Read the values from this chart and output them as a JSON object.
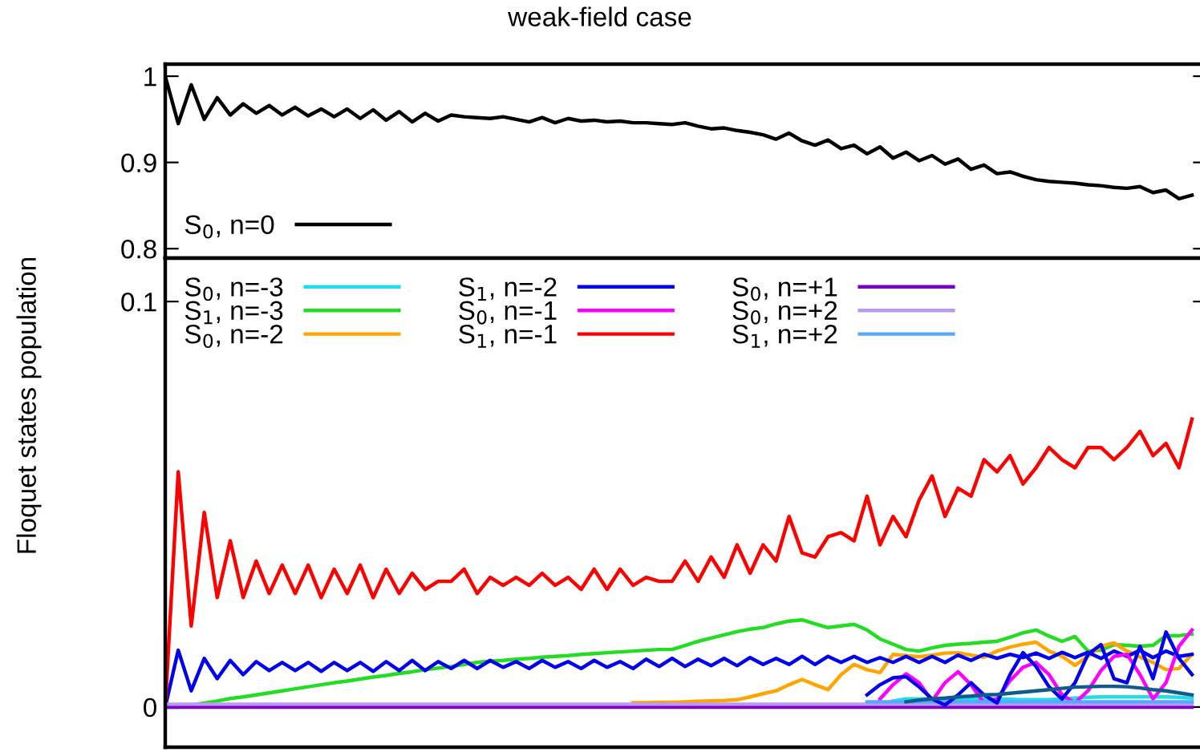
{
  "chart_data": [
    {
      "type": "line",
      "title": "weak-field case",
      "ylabel": "Floquet states population",
      "tick_labels": "y",
      "legend": "bottom left",
      "categories": [
        null,
        null,
        null,
        null,
        null,
        null,
        null,
        null,
        null,
        null,
        null,
        null,
        null,
        null,
        null,
        null,
        null,
        null,
        null,
        null,
        null,
        null,
        null,
        null,
        null,
        null,
        null,
        null,
        null,
        null,
        null,
        null,
        null,
        null,
        null,
        null,
        null,
        null,
        null,
        null,
        null,
        null,
        null,
        null,
        null,
        null,
        null,
        null,
        null,
        null,
        null,
        null,
        null,
        null,
        null,
        null,
        null,
        null,
        null,
        null,
        null,
        null,
        null,
        null,
        null,
        null,
        null,
        null,
        null,
        null,
        null,
        null,
        null,
        null,
        null,
        null,
        null,
        null,
        null,
        null
      ],
      "ylim": [
        0.789,
        1.014
      ],
      "yticks": [
        0.8,
        0.9,
        1
      ],
      "series": [
        {
          "name": "S$_{0}$, n=0",
          "color": "#000000",
          "values": [
            1.0,
            0.945,
            0.99,
            0.95,
            0.975,
            0.955,
            0.968,
            0.957,
            0.966,
            0.955,
            0.964,
            0.954,
            0.962,
            0.953,
            0.962,
            0.951,
            0.961,
            0.949,
            0.959,
            0.947,
            0.957,
            0.948,
            0.955,
            0.953,
            0.952,
            0.951,
            0.953,
            0.95,
            0.947,
            0.952,
            0.946,
            0.951,
            0.948,
            0.949,
            0.947,
            0.948,
            0.946,
            0.946,
            0.945,
            0.944,
            0.946,
            0.942,
            0.939,
            0.94,
            0.937,
            0.935,
            0.932,
            0.927,
            0.934,
            0.925,
            0.92,
            0.926,
            0.916,
            0.92,
            0.91,
            0.918,
            0.905,
            0.912,
            0.902,
            0.908,
            0.898,
            0.904,
            0.892,
            0.897,
            0.887,
            0.889,
            0.884,
            0.88,
            0.878,
            0.877,
            0.876,
            0.874,
            0.873,
            0.871,
            0.87,
            0.872,
            0.865,
            0.868,
            0.858,
            0.862
          ]
        }
      ]
    },
    {
      "type": "line",
      "tick_labels": "y",
      "legend": "top left",
      "categories": [
        null,
        null,
        null,
        null,
        null,
        null,
        null,
        null,
        null,
        null,
        null,
        null,
        null,
        null,
        null,
        null,
        null,
        null,
        null,
        null,
        null,
        null,
        null,
        null,
        null,
        null,
        null,
        null,
        null,
        null,
        null,
        null,
        null,
        null,
        null,
        null,
        null,
        null,
        null,
        null,
        null,
        null,
        null,
        null,
        null,
        null,
        null,
        null,
        null,
        null,
        null,
        null,
        null,
        null,
        null,
        null,
        null,
        null,
        null,
        null,
        null,
        null,
        null,
        null,
        null,
        null,
        null,
        null,
        null,
        null,
        null,
        null,
        null,
        null,
        null,
        null,
        null,
        null,
        null,
        null
      ],
      "ylim": [
        -0.0099,
        0.1107
      ],
      "yticks": [
        0,
        0.1
      ],
      "series": [
        {
          "name": "S$_{0}$, n=-3",
          "color": "#22dde8",
          "values": [
            null,
            null,
            null,
            null,
            null,
            null,
            null,
            null,
            null,
            null,
            null,
            null,
            null,
            null,
            null,
            null,
            null,
            null,
            null,
            null,
            null,
            null,
            null,
            null,
            null,
            null,
            null,
            null,
            null,
            null,
            null,
            null,
            null,
            null,
            null,
            null,
            null,
            null,
            null,
            null,
            null,
            null,
            null,
            null,
            null,
            null,
            null,
            null,
            null,
            null,
            null,
            null,
            null,
            null,
            null,
            null,
            0.0015,
            0.002,
            0.002,
            0.002,
            0.002,
            0.002,
            0.002,
            0.002,
            0.002,
            0.0019,
            0.0018,
            0.0018,
            0.0018,
            0.002,
            0.0022,
            0.0024,
            0.0025,
            0.0025,
            0.0025,
            0.0025,
            0.0025,
            0.0025,
            0.0024,
            0.0022
          ]
        },
        {
          "name": "S$_{1}$, n=-3",
          "color": "#22dd22",
          "values": [
            0,
            0,
            0.0005,
            0.001,
            0.0015,
            0.0021,
            0.0025,
            0.003,
            0.0035,
            0.004,
            0.0045,
            0.005,
            0.0055,
            0.006,
            0.0064,
            0.0069,
            0.0074,
            0.0078,
            0.0083,
            0.0087,
            0.0092,
            0.0096,
            0.01,
            0.0105,
            0.011,
            0.0113,
            0.0115,
            0.0118,
            0.012,
            0.0123,
            0.0125,
            0.0127,
            0.013,
            0.0132,
            0.0134,
            0.0136,
            0.0138,
            0.014,
            0.0142,
            0.0142,
            0.0152,
            0.0162,
            0.017,
            0.0178,
            0.0186,
            0.0192,
            0.0196,
            0.0205,
            0.0212,
            0.0215,
            0.0205,
            0.0196,
            0.02,
            0.0204,
            0.019,
            0.0168,
            0.0155,
            0.0142,
            0.0138,
            0.0146,
            0.0152,
            0.0155,
            0.0157,
            0.016,
            0.0162,
            0.0172,
            0.0183,
            0.019,
            0.0175,
            0.0162,
            0.0174,
            0.0138,
            0.014,
            0.0154,
            0.0152,
            0.015,
            0.0152,
            0.0176,
            0.0176,
            0.018
          ]
        },
        {
          "name": "S$_{0}$, n=-2",
          "color": "#ffa500",
          "values": [
            null,
            null,
            null,
            null,
            null,
            null,
            null,
            null,
            null,
            null,
            null,
            null,
            null,
            null,
            null,
            null,
            null,
            null,
            null,
            null,
            null,
            null,
            null,
            null,
            null,
            null,
            null,
            null,
            null,
            null,
            null,
            null,
            null,
            null,
            null,
            null,
            0.0011,
            0.0011,
            0.0012,
            0.0012,
            0.0013,
            0.0014,
            0.0015,
            0.0016,
            0.0018,
            0.0025,
            0.0033,
            0.004,
            0.0055,
            0.0068,
            0.0055,
            0.0043,
            0.008,
            0.0105,
            0.0092,
            0.0085,
            0.013,
            0.0127,
            0.0124,
            0.0128,
            0.0133,
            0.0134,
            0.0128,
            0.0123,
            0.0138,
            0.0148,
            0.0155,
            0.016,
            0.0138,
            0.0125,
            0.0103,
            0.0125,
            0.015,
            0.0158,
            0.0138,
            0.0123,
            0.011,
            0.0092,
            0.0095,
            0.013
          ]
        },
        {
          "name": "S$_{1}$, n=-2",
          "color": "#0000ee",
          "values": [
            0,
            0.014,
            0.004,
            0.012,
            0.007,
            0.0115,
            0.008,
            0.0112,
            0.009,
            0.011,
            0.009,
            0.011,
            0.0088,
            0.011,
            0.009,
            0.011,
            0.0088,
            0.0112,
            0.009,
            0.0115,
            0.009,
            0.0112,
            0.0095,
            0.0115,
            0.0095,
            0.0115,
            0.0098,
            0.0112,
            0.0095,
            0.0115,
            0.0098,
            0.0112,
            0.0095,
            0.0115,
            0.0098,
            0.0112,
            0.0095,
            0.0118,
            0.01,
            0.012,
            0.01,
            0.0118,
            0.0102,
            0.012,
            0.0102,
            0.0122,
            0.0105,
            0.012,
            0.0105,
            0.0125,
            0.0105,
            0.0125,
            0.011,
            0.0125,
            0.011,
            0.0122,
            0.011,
            0.0125,
            0.011,
            0.0125,
            0.011,
            0.0128,
            0.0115,
            0.013,
            0.012,
            0.013,
            0.0122,
            0.0133,
            0.012,
            0.0135,
            0.0122,
            0.0135,
            0.012,
            0.0138,
            0.0125,
            0.014,
            0.0122,
            0.0138,
            0.0125,
            0.013
          ]
        },
        {
          "name": "S$_{0}$, n=-1",
          "color": "#ff00ff",
          "values": [
            null,
            null,
            null,
            null,
            null,
            null,
            null,
            null,
            null,
            null,
            null,
            null,
            null,
            null,
            null,
            null,
            null,
            null,
            null,
            null,
            null,
            null,
            null,
            null,
            null,
            null,
            null,
            null,
            null,
            null,
            null,
            null,
            null,
            null,
            null,
            null,
            null,
            null,
            null,
            null,
            null,
            null,
            null,
            null,
            null,
            null,
            null,
            null,
            null,
            null,
            null,
            null,
            null,
            null,
            null,
            0.002,
            0.0055,
            0.0082,
            0.006,
            0.0015,
            0.006,
            0.0087,
            0.0055,
            0.001,
            0.002,
            0.0065,
            0.0098,
            0.011,
            0.008,
            0.003,
            0.001,
            0.004,
            0.009,
            0.0125,
            0.013,
            0.008,
            0.002,
            0.006,
            0.015,
            0.019
          ]
        },
        {
          "name": "S$_{1}$, n=-1",
          "color": "#ff0000",
          "values": [
            0,
            0.058,
            0.02,
            0.048,
            0.027,
            0.041,
            0.027,
            0.036,
            0.028,
            0.035,
            0.028,
            0.035,
            0.027,
            0.034,
            0.028,
            0.035,
            0.027,
            0.034,
            0.028,
            0.033,
            0.029,
            0.031,
            0.031,
            0.034,
            0.028,
            0.032,
            0.03,
            0.032,
            0.03,
            0.033,
            0.03,
            0.032,
            0.029,
            0.034,
            0.029,
            0.034,
            0.03,
            0.032,
            0.031,
            0.031,
            0.036,
            0.031,
            0.037,
            0.032,
            0.04,
            0.033,
            0.04,
            0.036,
            0.047,
            0.038,
            0.037,
            0.042,
            0.043,
            0.041,
            0.052,
            0.04,
            0.047,
            0.042,
            0.051,
            0.057,
            0.047,
            0.054,
            0.052,
            0.061,
            0.058,
            0.062,
            0.055,
            0.059,
            0.064,
            0.061,
            0.059,
            0.064,
            0.064,
            0.061,
            0.064,
            0.068,
            0.062,
            0.065,
            0.059,
            0.071
          ]
        },
        {
          "name": "S$_{0}$, n=+1",
          "color": "#7a00c8",
          "values": [
            0,
            0,
            0,
            0,
            0,
            0,
            0,
            0,
            0,
            0,
            0,
            0,
            0,
            0,
            0,
            0,
            0,
            0,
            0,
            0,
            0,
            0,
            0,
            0,
            0,
            0,
            0,
            0,
            0,
            0,
            0,
            0,
            0,
            0,
            0,
            0,
            0,
            0,
            0,
            0,
            0,
            0,
            0,
            0,
            0,
            0,
            0,
            0,
            0,
            0,
            0,
            0,
            0,
            0,
            0,
            0,
            0,
            0,
            0,
            0,
            0,
            0,
            0,
            0,
            0,
            0,
            0,
            0,
            0,
            0,
            0,
            0,
            0,
            0,
            0,
            0,
            0,
            0,
            0,
            0
          ]
        },
        {
          "name": "S$_{0}$, n=+2",
          "color": "#bb99ee",
          "values": [
            0.0007,
            0.0007,
            0.0007,
            0.0007,
            0.0007,
            0.0007,
            0.0007,
            0.0007,
            0.0007,
            0.0007,
            0.0007,
            0.0007,
            0.0007,
            0.0007,
            0.0007,
            0.0007,
            0.0007,
            0.0007,
            0.0007,
            0.0007,
            0.0007,
            0.0007,
            0.0007,
            0.0007,
            0.0007,
            0.0007,
            0.0007,
            0.0007,
            0.0007,
            0.0007,
            0.0007,
            0.0007,
            0.0007,
            0.0007,
            0.0007,
            0.0007,
            0.0007,
            0.0007,
            0.0007,
            0.0007,
            0.0007,
            0.0007,
            0.0007,
            0.0007,
            0.0007,
            0.0007,
            0.0007,
            0.0007,
            0.0007,
            0.0007,
            0.0007,
            0.0007,
            0.0007,
            0.0007,
            0.0007,
            0.0007,
            0.0007,
            0.0007,
            0.0007,
            0.0007,
            0.0007,
            0.0007,
            0.0007,
            0.0007,
            0.0007,
            0.0007,
            0.0007,
            0.0007,
            0.0007,
            0.0007,
            0.0007,
            0.0007,
            0.0007,
            0.0007,
            0.0007,
            0.0007,
            0.0007,
            0.0007,
            0.0007,
            0.0007
          ]
        },
        {
          "name": "S$_{1}$, n=+2",
          "color": "#55aaff",
          "values": [
            null,
            null,
            null,
            null,
            null,
            null,
            null,
            null,
            null,
            null,
            null,
            null,
            null,
            null,
            null,
            null,
            null,
            null,
            null,
            null,
            null,
            null,
            null,
            null,
            null,
            null,
            null,
            null,
            null,
            null,
            null,
            null,
            null,
            null,
            null,
            null,
            null,
            null,
            null,
            null,
            null,
            null,
            null,
            null,
            null,
            null,
            null,
            null,
            null,
            null,
            null,
            null,
            null,
            null,
            0.0013,
            0.0013,
            0.0013,
            0.0013,
            0.0013,
            0.0013,
            0.0013,
            0.0013,
            0.0013,
            0.0013,
            0.0013,
            0.0013,
            0.0013,
            0.0013,
            0.0013,
            0.0013,
            0.0013,
            0.0013,
            0.0013,
            0.0013,
            0.0013,
            0.0013,
            0.0013,
            0.0013,
            0.0013,
            0.0013
          ]
        },
        {
          "color": "#0000ee",
          "values": [
            null,
            null,
            null,
            null,
            null,
            null,
            null,
            null,
            null,
            null,
            null,
            null,
            null,
            null,
            null,
            null,
            null,
            null,
            null,
            null,
            null,
            null,
            null,
            null,
            null,
            null,
            null,
            null,
            null,
            null,
            null,
            null,
            null,
            null,
            null,
            null,
            null,
            null,
            null,
            null,
            null,
            null,
            null,
            null,
            null,
            null,
            null,
            null,
            null,
            null,
            null,
            null,
            null,
            null,
            0.003,
            0.0055,
            0.0072,
            0.0075,
            0.005,
            0.002,
            0.0005,
            0.003,
            0.006,
            0.003,
            0.001,
            0.008,
            0.0134,
            0.01,
            0.005,
            0.002,
            0.006,
            0.013,
            0.0154,
            0.007,
            0.006,
            0.015,
            0.007,
            0.0185,
            0.012,
            0.008
          ]
        },
        {
          "color": "#105a8c",
          "values": [
            null,
            null,
            null,
            null,
            null,
            null,
            null,
            null,
            null,
            null,
            null,
            null,
            null,
            null,
            null,
            null,
            null,
            null,
            null,
            null,
            null,
            null,
            null,
            null,
            null,
            null,
            null,
            null,
            null,
            null,
            null,
            null,
            null,
            null,
            null,
            null,
            null,
            null,
            null,
            null,
            null,
            null,
            null,
            null,
            null,
            null,
            null,
            null,
            null,
            null,
            null,
            null,
            null,
            null,
            null,
            null,
            null,
            0.0013,
            0.0017,
            0.002,
            0.0022,
            0.0025,
            0.0027,
            0.003,
            0.0031,
            0.0034,
            0.0037,
            0.004,
            0.0043,
            0.0046,
            0.0049,
            0.005,
            0.0051,
            0.0051,
            0.005,
            0.0047,
            0.0043,
            0.004,
            0.0035,
            0.003
          ]
        }
      ]
    }
  ]
}
